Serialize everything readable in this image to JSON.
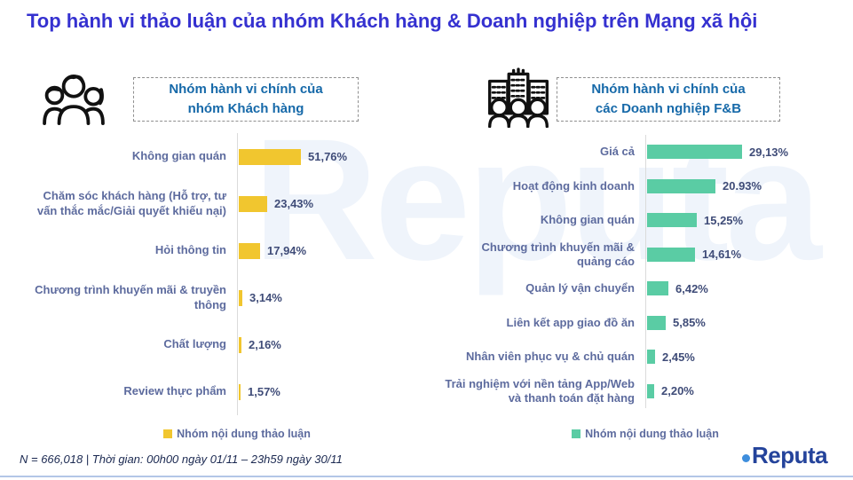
{
  "page": {
    "title": "Top hành vi thảo luận của nhóm Khách hàng & Doanh nghiệp trên Mạng xã hội",
    "watermark": "Reputa",
    "footer_note": "N = 666,018 | Thời gian: 00h00 ngày 01/11 – 23h59 ngày 30/11",
    "brand": "Reputa"
  },
  "colors": {
    "title_blue": "#3531D0",
    "header_blue": "#1669A9",
    "label_slate": "#5D6B9E",
    "value_slate": "#3F4C78",
    "customer_yellow": "#F1C62F",
    "business_green": "#5ACCA4",
    "watermark_blue": "#EFF4FB"
  },
  "chart_data": [
    {
      "type": "bar",
      "orientation": "horizontal",
      "unit": "%",
      "title_lines": [
        "Nhóm hành vi chính của",
        "nhóm Khách hàng"
      ],
      "icon": "people-group-icon",
      "legend": "Nhóm nội dung thảo luận",
      "color": "#F1C62F",
      "categories": [
        "Không gian quán",
        "Chăm sóc khách hàng (Hỗ trợ, tư vấn thắc mắc/Giải quyết khiếu nại)",
        "Hỏi thông tin",
        "Chương trình khuyến mãi & truyền thông",
        "Chất lượng",
        "Review thực phẩm"
      ],
      "values": [
        51.76,
        23.43,
        17.94,
        3.14,
        2.16,
        1.57
      ],
      "value_labels": [
        "51,76%",
        "23,43%",
        "17,94%",
        "3,14%",
        "2,16%",
        "1,57%"
      ]
    },
    {
      "type": "bar",
      "orientation": "horizontal",
      "unit": "%",
      "title_lines": [
        "Nhóm hành vi chính của",
        "các Doanh nghiệp F&B"
      ],
      "icon": "buildings-people-icon",
      "legend": "Nhóm nội dung thảo luận",
      "color": "#5ACCA4",
      "categories": [
        "Giá cả",
        "Hoạt động kinh doanh",
        "Không gian quán",
        "Chương trình khuyến mãi & quảng cáo",
        "Quản lý vận chuyển",
        "Liên kết app giao đồ ăn",
        "Nhân viên phục vụ & chủ quán",
        "Trải nghiệm với nền tảng App/Web và thanh toán đặt hàng"
      ],
      "values": [
        29.13,
        20.93,
        15.25,
        14.61,
        6.42,
        5.85,
        2.45,
        2.2
      ],
      "value_labels": [
        "29,13%",
        "20.93%",
        "15,25%",
        "14,61%",
        "6,42%",
        "5,85%",
        "2,45%",
        "2,20%"
      ]
    }
  ]
}
